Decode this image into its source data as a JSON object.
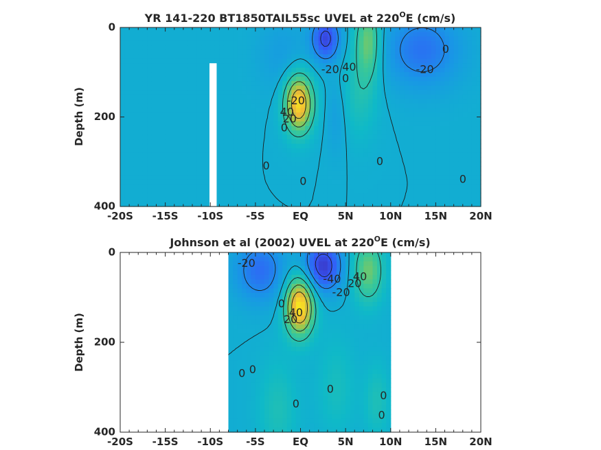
{
  "chart_data": [
    {
      "type": "heatmap",
      "title_main": "YR 141-220 BT1850TAIL55sc UVEL at 220",
      "title_sup": "O",
      "title_tail": "E (cm/s)",
      "ylabel": "Depth (m)",
      "xlim": [
        -20,
        20
      ],
      "ylim": [
        400,
        0
      ],
      "x_ticks": [
        {
          "value": -20,
          "label": "-20S"
        },
        {
          "value": -15,
          "label": "-15S"
        },
        {
          "value": -10,
          "label": "-10S"
        },
        {
          "value": -5,
          "label": "-5S"
        },
        {
          "value": 0,
          "label": "EQ"
        },
        {
          "value": 5,
          "label": "5N"
        },
        {
          "value": 10,
          "label": "10N"
        },
        {
          "value": 15,
          "label": "15N"
        },
        {
          "value": 20,
          "label": "20N"
        }
      ],
      "y_ticks": [
        {
          "value": 0,
          "label": "0"
        },
        {
          "value": 200,
          "label": "200"
        },
        {
          "value": 400,
          "label": "400"
        }
      ],
      "features": [
        {
          "lat": -0.2,
          "depth": 170,
          "sx": 1.1,
          "sy": 45,
          "amp": 80
        },
        {
          "lat": 7.5,
          "depth": 30,
          "sx": 1.0,
          "sy": 60,
          "amp": 40
        },
        {
          "lat": 6.5,
          "depth": 150,
          "sx": 1.4,
          "sy": 70,
          "amp": 15
        },
        {
          "lat": 2.8,
          "depth": 25,
          "sx": 1.1,
          "sy": 35,
          "amp": -45
        },
        {
          "lat": 13.5,
          "depth": 50,
          "sx": 3.0,
          "sy": 60,
          "amp": -28
        },
        {
          "lat": 4.0,
          "depth": 200,
          "sx": 0.8,
          "sy": 60,
          "amp": -10
        },
        {
          "lat": -2.0,
          "depth": 60,
          "sx": 2.0,
          "sy": 60,
          "amp": -10
        }
      ],
      "mask": [
        [
          -10.1,
          80,
          -9.3,
          400
        ]
      ],
      "contour_labels": [
        {
          "lat": -0.5,
          "depth": 165,
          "text": "-20"
        },
        {
          "lat": -1.5,
          "depth": 190,
          "text": "40"
        },
        {
          "lat": -1.2,
          "depth": 205,
          "text": "20"
        },
        {
          "lat": -1.8,
          "depth": 225,
          "text": "0"
        },
        {
          "lat": -3.8,
          "depth": 310,
          "text": "0"
        },
        {
          "lat": 0.3,
          "depth": 345,
          "text": "0"
        },
        {
          "lat": 3.3,
          "depth": 95,
          "text": "-20"
        },
        {
          "lat": 5.4,
          "depth": 90,
          "text": "40"
        },
        {
          "lat": 5.0,
          "depth": 115,
          "text": "0"
        },
        {
          "lat": 8.8,
          "depth": 300,
          "text": "0"
        },
        {
          "lat": 13.8,
          "depth": 95,
          "text": "-20"
        },
        {
          "lat": 16.1,
          "depth": 50,
          "text": "0"
        },
        {
          "lat": 18.0,
          "depth": 340,
          "text": "0"
        }
      ]
    },
    {
      "type": "heatmap",
      "title_main": "Johnson et al (2002) UVEL at 220",
      "title_sup": "O",
      "title_tail": "E (cm/s)",
      "ylabel": "Depth (m)",
      "xlim": [
        -20,
        20
      ],
      "ylim": [
        400,
        0
      ],
      "x_ticks": [
        {
          "value": -20,
          "label": "-20S"
        },
        {
          "value": -15,
          "label": "-15S"
        },
        {
          "value": -10,
          "label": "-10S"
        },
        {
          "value": -5,
          "label": "-5S"
        },
        {
          "value": 0,
          "label": "EQ"
        },
        {
          "value": 5,
          "label": "5N"
        },
        {
          "value": 10,
          "label": "10N"
        },
        {
          "value": 15,
          "label": "15N"
        },
        {
          "value": 20,
          "label": "20N"
        }
      ],
      "y_ticks": [
        {
          "value": 0,
          "label": "0"
        },
        {
          "value": 200,
          "label": "200"
        },
        {
          "value": 400,
          "label": "400"
        }
      ],
      "data_range": [
        -8,
        10
      ],
      "features": [
        {
          "lat": -0.1,
          "depth": 120,
          "sx": 1.1,
          "sy": 45,
          "amp": 85
        },
        {
          "lat": 7.5,
          "depth": 40,
          "sx": 1.2,
          "sy": 50,
          "amp": 40
        },
        {
          "lat": 2.5,
          "depth": 30,
          "sx": 1.5,
          "sy": 40,
          "amp": -50
        },
        {
          "lat": -4.5,
          "depth": 40,
          "sx": 2.0,
          "sy": 50,
          "amp": -30
        },
        {
          "lat": -2.5,
          "depth": 350,
          "sx": 1.5,
          "sy": 80,
          "amp": 15
        },
        {
          "lat": 4.0,
          "depth": 300,
          "sx": 1.5,
          "sy": 80,
          "amp": 12
        },
        {
          "lat": 8.5,
          "depth": 330,
          "sx": 1.0,
          "sy": 60,
          "amp": 15
        }
      ],
      "contour_labels": [
        {
          "lat": -6.0,
          "depth": 25,
          "text": "-20"
        },
        {
          "lat": -2.1,
          "depth": 115,
          "text": "0"
        },
        {
          "lat": -0.5,
          "depth": 135,
          "text": "40"
        },
        {
          "lat": -1.1,
          "depth": 150,
          "text": "20"
        },
        {
          "lat": 3.5,
          "depth": 60,
          "text": "-40"
        },
        {
          "lat": 4.5,
          "depth": 90,
          "text": "-20"
        },
        {
          "lat": 6.0,
          "depth": 70,
          "text": "20"
        },
        {
          "lat": 6.6,
          "depth": 55,
          "text": "40"
        },
        {
          "lat": -6.5,
          "depth": 270,
          "text": "0"
        },
        {
          "lat": -5.3,
          "depth": 262,
          "text": "0"
        },
        {
          "lat": -0.5,
          "depth": 338,
          "text": "0"
        },
        {
          "lat": 3.3,
          "depth": 305,
          "text": "0"
        },
        {
          "lat": 9.2,
          "depth": 320,
          "text": "0"
        },
        {
          "lat": 9.0,
          "depth": 363,
          "text": "0"
        }
      ]
    }
  ]
}
